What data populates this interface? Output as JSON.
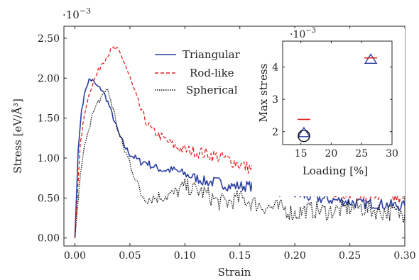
{
  "chart_data": [
    {
      "type": "line",
      "title": "",
      "xlabel": "Strain",
      "ylabel": "Stress [eV/Å³]",
      "scale_prefix": "·10",
      "scale_exponent": "−3",
      "xlim": [
        -0.01,
        0.3
      ],
      "ylim": [
        -0.1,
        2.65
      ],
      "x_ticks": [
        0.0,
        0.05,
        0.1,
        0.15,
        0.2,
        0.25,
        0.3
      ],
      "x_tick_labels": [
        "0.00",
        "0.05",
        "0.10",
        "0.15",
        "0.20",
        "0.25",
        "0.30"
      ],
      "y_ticks": [
        0.0,
        0.5,
        1.0,
        1.5,
        2.0,
        2.5
      ],
      "y_tick_labels": [
        "0.00",
        "0.50",
        "1.00",
        "1.50",
        "2.00",
        "2.50"
      ],
      "grid": false,
      "legend_position": "top-center",
      "series": [
        {
          "name": "Triangular",
          "color": "#2b3fa0",
          "dash": "solid",
          "x": [
            0.0,
            0.003,
            0.006,
            0.01,
            0.013,
            0.016,
            0.02,
            0.025,
            0.03,
            0.035,
            0.04,
            0.045,
            0.05,
            0.055,
            0.06,
            0.065,
            0.07,
            0.08,
            0.09,
            0.1,
            0.11,
            0.12,
            0.13,
            0.14,
            0.15,
            0.16,
            0.17,
            0.18,
            0.19,
            0.2,
            0.21,
            0.22,
            0.23,
            0.24,
            0.25,
            0.26,
            0.27,
            0.28,
            0.29,
            0.3
          ],
          "y": [
            0.0,
            1.1,
            1.6,
            1.88,
            1.98,
            1.97,
            1.9,
            1.85,
            1.7,
            1.5,
            1.3,
            1.15,
            1.05,
            1.0,
            0.95,
            0.95,
            0.9,
            0.85,
            0.85,
            0.8,
            0.75,
            0.7,
            0.7,
            0.65,
            0.65,
            0.65,
            0.62,
            0.6,
            0.57,
            0.55,
            0.52,
            0.5,
            0.48,
            0.47,
            0.45,
            0.43,
            0.43,
            0.42,
            0.41,
            0.4
          ]
        },
        {
          "name": "Rod-like",
          "color": "#e02020",
          "dash": "dashed",
          "x": [
            0.0,
            0.005,
            0.01,
            0.015,
            0.02,
            0.025,
            0.03,
            0.035,
            0.04,
            0.045,
            0.05,
            0.055,
            0.06,
            0.065,
            0.07,
            0.08,
            0.09,
            0.1,
            0.11,
            0.12,
            0.13,
            0.14,
            0.15,
            0.16,
            0.17,
            0.18,
            0.19,
            0.2,
            0.21,
            0.22,
            0.23,
            0.24,
            0.25,
            0.26,
            0.27,
            0.28,
            0.29,
            0.3
          ],
          "y": [
            0.0,
            1.2,
            1.65,
            1.9,
            2.05,
            2.2,
            2.3,
            2.37,
            2.33,
            2.2,
            2.0,
            1.8,
            1.6,
            1.45,
            1.35,
            1.25,
            1.15,
            1.1,
            1.08,
            1.05,
            1.02,
            0.98,
            0.92,
            0.87,
            0.82,
            0.78,
            0.72,
            0.68,
            0.65,
            0.63,
            0.6,
            0.58,
            0.56,
            0.55,
            0.53,
            0.52,
            0.5,
            0.48
          ]
        },
        {
          "name": "Spherical",
          "color": "#111111",
          "dash": "dotted",
          "x": [
            0.0,
            0.005,
            0.01,
            0.015,
            0.02,
            0.025,
            0.03,
            0.035,
            0.04,
            0.045,
            0.05,
            0.055,
            0.06,
            0.065,
            0.07,
            0.08,
            0.09,
            0.1,
            0.11,
            0.12,
            0.13,
            0.14,
            0.15,
            0.16,
            0.17,
            0.18,
            0.19,
            0.2,
            0.21,
            0.22,
            0.23,
            0.24,
            0.25,
            0.26,
            0.27,
            0.28,
            0.29,
            0.3
          ],
          "y": [
            0.0,
            0.8,
            1.25,
            1.5,
            1.65,
            1.8,
            1.85,
            1.6,
            1.3,
            1.1,
            0.95,
            0.75,
            0.55,
            0.5,
            0.5,
            0.52,
            0.55,
            0.65,
            0.6,
            0.55,
            0.45,
            0.45,
            0.5,
            0.45,
            0.4,
            0.38,
            0.37,
            0.3,
            0.35,
            0.35,
            0.33,
            0.35,
            0.38,
            0.38,
            0.35,
            0.33,
            0.32,
            0.3
          ]
        }
      ]
    },
    {
      "type": "scatter",
      "title": "",
      "xlabel": "Loading [%]",
      "ylabel": "Max stress",
      "scale_prefix": "·10",
      "scale_exponent": "−3",
      "xlim": [
        12,
        30
      ],
      "ylim": [
        1.6,
        4.8
      ],
      "x_ticks": [
        15,
        20,
        25,
        30
      ],
      "x_tick_labels": [
        "15",
        "20",
        "25",
        "30"
      ],
      "y_ticks": [
        2,
        3,
        4
      ],
      "y_tick_labels": [
        "2",
        "3",
        "4"
      ],
      "grid": false,
      "points": [
        {
          "series": "Triangular",
          "x": 26.5,
          "y": 4.22,
          "marker": "triangle",
          "color": "#2b3fa0"
        },
        {
          "series": "Rod-like",
          "x": 26.5,
          "y": 4.28,
          "marker": "dash",
          "color": "#e02020"
        },
        {
          "series": "Rod-like",
          "x": 15.5,
          "y": 2.38,
          "marker": "dash",
          "color": "#e02020"
        },
        {
          "series": "Triangular",
          "x": 15.5,
          "y": 1.95,
          "marker": "triangle",
          "color": "#2b3fa0"
        },
        {
          "series": "Spherical",
          "x": 15.5,
          "y": 1.87,
          "marker": "circle",
          "color": "#111111"
        }
      ]
    }
  ]
}
